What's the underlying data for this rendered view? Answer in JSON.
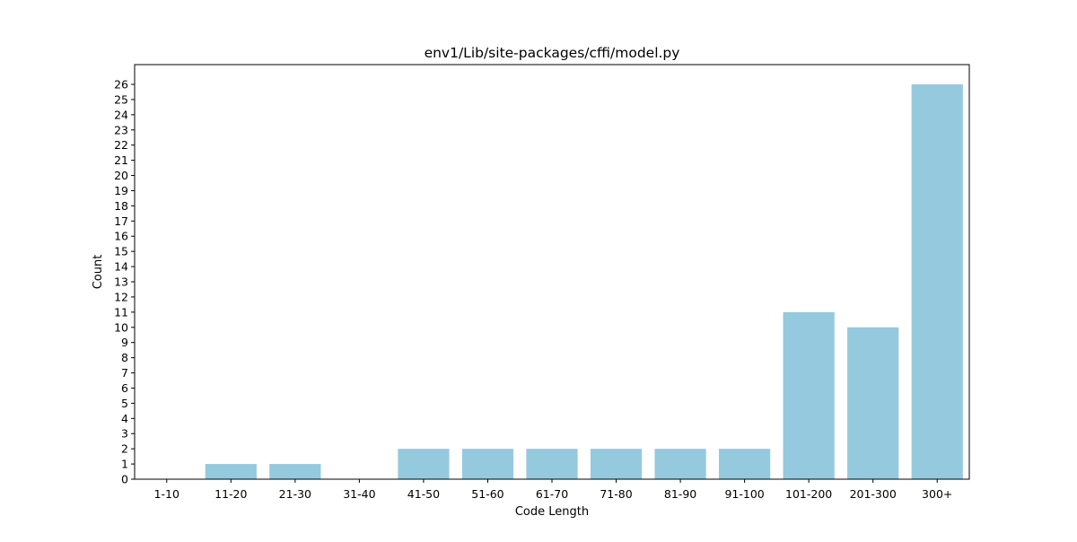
{
  "chart_data": {
    "type": "bar",
    "title": "env1/Lib/site-packages/cffi/model.py",
    "xlabel": "Code Length",
    "ylabel": "Count",
    "categories": [
      "1-10",
      "11-20",
      "21-30",
      "31-40",
      "41-50",
      "51-60",
      "61-70",
      "71-80",
      "81-90",
      "91-100",
      "101-200",
      "201-300",
      "300+"
    ],
    "values": [
      0,
      1,
      1,
      0,
      2,
      2,
      2,
      2,
      2,
      2,
      11,
      10,
      26
    ],
    "ylim": [
      0,
      27.3
    ],
    "yticks": [
      0,
      1,
      2,
      3,
      4,
      5,
      6,
      7,
      8,
      9,
      10,
      11,
      12,
      13,
      14,
      15,
      16,
      17,
      18,
      19,
      20,
      21,
      22,
      23,
      24,
      25,
      26
    ],
    "bar_color": "#95c9de",
    "grid": false,
    "legend": "none"
  }
}
